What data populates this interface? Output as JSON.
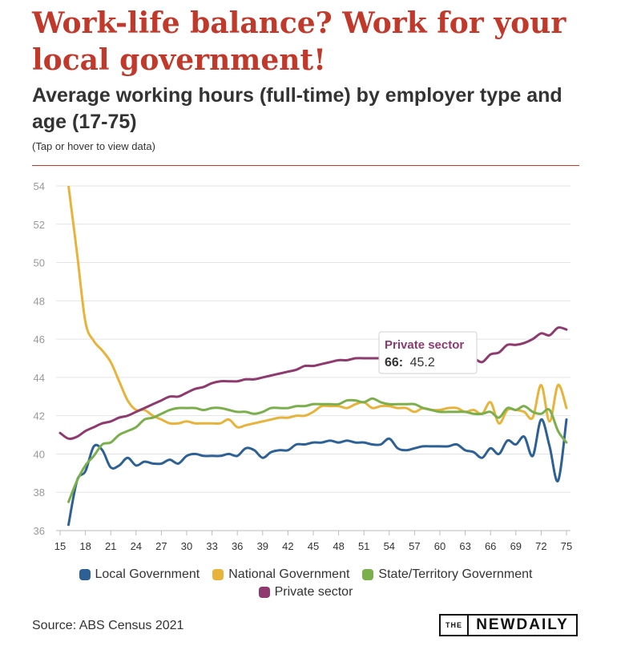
{
  "header": {
    "title": "Work-life balance? Work for your local government!",
    "subtitle": "Average working hours (full-time) by employer type and age (17-75)",
    "note": "(Tap or hover to view data)"
  },
  "footer": {
    "source": "Source: ABS Census 2021",
    "logo_the": "THE",
    "logo_main": "NEWDAILY"
  },
  "tooltip": {
    "series": "Private sector",
    "x_label": "66:",
    "value": "45.2",
    "color": "#8e3a6f"
  },
  "chart_data": {
    "type": "line",
    "title": "Average working hours (full-time) by employer type and age (17-75)",
    "xlabel": "",
    "ylabel": "",
    "xlim": [
      15,
      75
    ],
    "ylim": [
      36,
      54
    ],
    "x_ticks": [
      15,
      18,
      21,
      24,
      27,
      30,
      33,
      36,
      39,
      42,
      45,
      48,
      51,
      54,
      57,
      60,
      63,
      66,
      69,
      72,
      75
    ],
    "y_ticks": [
      36,
      38,
      40,
      42,
      44,
      46,
      48,
      50,
      52,
      54
    ],
    "grid": true,
    "legend": "bottom",
    "x": [
      15,
      16,
      17,
      18,
      19,
      20,
      21,
      22,
      23,
      24,
      25,
      26,
      27,
      28,
      29,
      30,
      31,
      32,
      33,
      34,
      35,
      36,
      37,
      38,
      39,
      40,
      41,
      42,
      43,
      44,
      45,
      46,
      47,
      48,
      49,
      50,
      51,
      52,
      53,
      54,
      55,
      56,
      57,
      58,
      59,
      60,
      61,
      62,
      63,
      64,
      65,
      66,
      67,
      68,
      69,
      70,
      71,
      72,
      73,
      74,
      75
    ],
    "series": [
      {
        "name": "Local Government",
        "color": "#2d6196",
        "values": [
          null,
          36.3,
          38.6,
          39.1,
          40.4,
          40.2,
          39.3,
          39.4,
          39.8,
          39.4,
          39.6,
          39.5,
          39.5,
          39.7,
          39.5,
          39.9,
          40.0,
          39.9,
          39.9,
          39.9,
          40.0,
          39.9,
          40.3,
          40.2,
          39.8,
          40.1,
          40.2,
          40.2,
          40.5,
          40.5,
          40.6,
          40.6,
          40.7,
          40.6,
          40.7,
          40.6,
          40.6,
          40.5,
          40.5,
          40.8,
          40.3,
          40.2,
          40.3,
          40.4,
          40.4,
          40.4,
          40.4,
          40.5,
          40.2,
          40.1,
          39.8,
          40.3,
          40.0,
          40.7,
          40.5,
          40.9,
          39.9,
          41.8,
          40.4,
          38.6,
          41.8
        ]
      },
      {
        "name": "National Government",
        "color": "#e8b33a",
        "values": [
          null,
          54.0,
          50.5,
          46.9,
          45.9,
          45.4,
          44.8,
          43.8,
          42.8,
          42.3,
          42.3,
          42.0,
          41.8,
          41.6,
          41.6,
          41.7,
          41.6,
          41.6,
          41.6,
          41.6,
          41.8,
          41.4,
          41.5,
          41.6,
          41.7,
          41.8,
          41.9,
          41.9,
          42.0,
          42.0,
          42.2,
          42.5,
          42.5,
          42.5,
          42.4,
          42.6,
          42.7,
          42.4,
          42.5,
          42.5,
          42.4,
          42.4,
          42.2,
          42.4,
          42.3,
          42.3,
          42.4,
          42.4,
          42.2,
          42.3,
          42.1,
          42.7,
          41.6,
          42.3,
          42.3,
          42.2,
          41.9,
          43.6,
          41.7,
          43.6,
          42.4
        ]
      },
      {
        "name": "State/Territory Government",
        "color": "#7aaf4c",
        "values": [
          null,
          37.5,
          38.6,
          39.4,
          39.9,
          40.5,
          40.6,
          41.0,
          41.2,
          41.4,
          41.8,
          41.9,
          42.1,
          42.3,
          42.4,
          42.4,
          42.4,
          42.3,
          42.4,
          42.4,
          42.3,
          42.2,
          42.2,
          42.1,
          42.2,
          42.4,
          42.4,
          42.4,
          42.5,
          42.5,
          42.6,
          42.6,
          42.6,
          42.6,
          42.8,
          42.8,
          42.7,
          42.9,
          42.7,
          42.6,
          42.6,
          42.6,
          42.6,
          42.4,
          42.3,
          42.2,
          42.2,
          42.2,
          42.2,
          42.1,
          42.1,
          42.2,
          41.9,
          42.4,
          42.3,
          42.5,
          42.2,
          42.1,
          42.3,
          41.2,
          40.6
        ]
      },
      {
        "name": "Private sector",
        "color": "#8e3a6f",
        "values": [
          41.1,
          40.8,
          40.9,
          41.2,
          41.4,
          41.6,
          41.7,
          41.9,
          42.0,
          42.2,
          42.4,
          42.6,
          42.8,
          43.0,
          43.0,
          43.2,
          43.4,
          43.5,
          43.7,
          43.8,
          43.8,
          43.8,
          43.9,
          43.9,
          44.0,
          44.1,
          44.2,
          44.3,
          44.4,
          44.6,
          44.6,
          44.7,
          44.8,
          44.9,
          44.9,
          45.0,
          45.0,
          45.0,
          45.0,
          45.0,
          45.0,
          45.1,
          45.0,
          45.0,
          45.0,
          45.0,
          45.1,
          45.0,
          45.0,
          45.0,
          44.8,
          45.2,
          45.3,
          45.7,
          45.7,
          45.8,
          46.0,
          46.3,
          46.2,
          46.6,
          46.5
        ]
      }
    ]
  }
}
